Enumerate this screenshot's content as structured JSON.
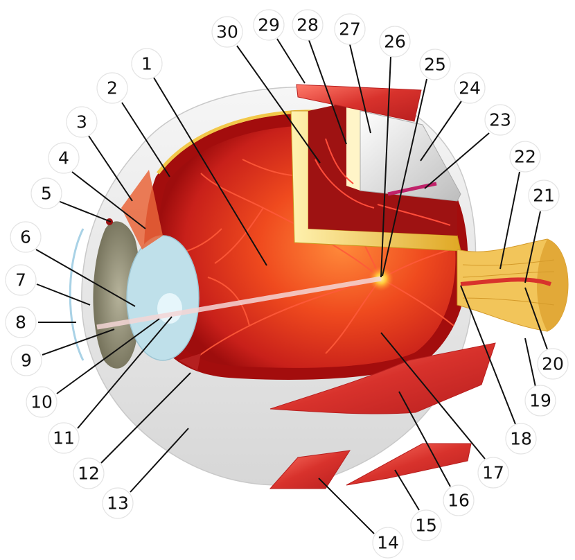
{
  "labels": [
    "1",
    "2",
    "3",
    "4",
    "5",
    "6",
    "7",
    "8",
    "9",
    "10",
    "11",
    "12",
    "13",
    "14",
    "15",
    "16",
    "17",
    "18",
    "19",
    "20",
    "21",
    "22",
    "23",
    "24",
    "25",
    "26",
    "27",
    "28",
    "29",
    "30"
  ],
  "colors": {
    "sclera": "#eeeeee",
    "choroid_outer": "#b80f0f",
    "retina": "#d8341a",
    "fovea": "#ffd43b",
    "vessel": "#ff4d3a",
    "muscle": "#d8322c",
    "optic_nerve": "#f2c55a",
    "lens": "#bfe0ea",
    "iris": "#8f8c70"
  }
}
